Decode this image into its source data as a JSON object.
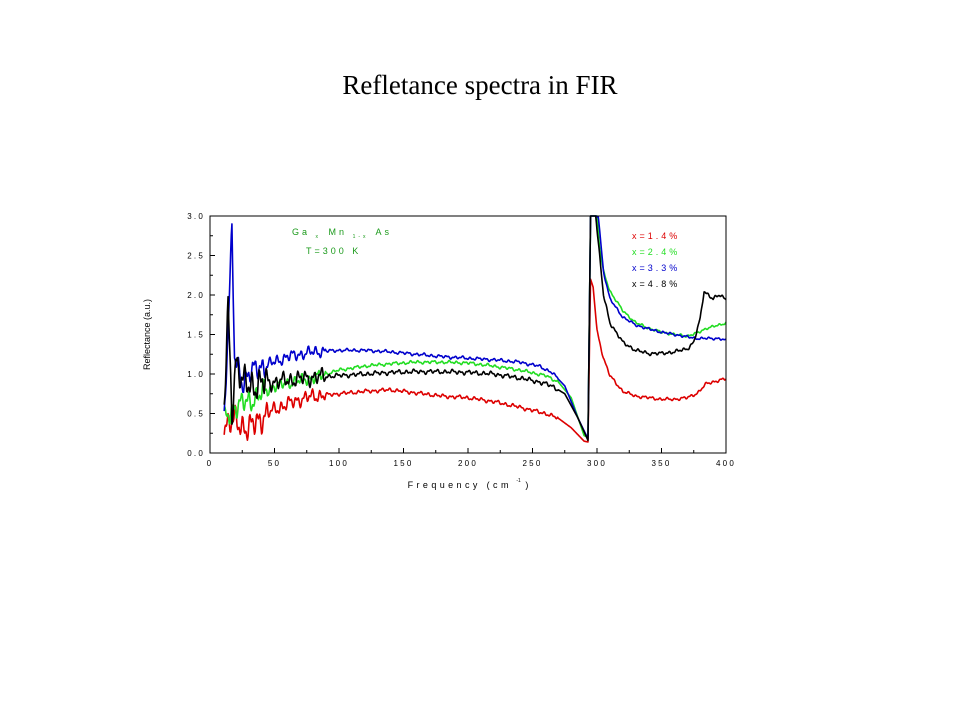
{
  "slide": {
    "title": "Refletance spectra in FIR"
  },
  "chart_data": {
    "type": "line",
    "title": "",
    "xlabel": "Frequency (cm",
    "xlabel_sup": "-1",
    "xlabel_close": ")",
    "ylabel": "Reflectance (a.u.)",
    "xlim": [
      0,
      400
    ],
    "ylim": [
      0.0,
      3.0
    ],
    "xticks": [
      0,
      50,
      100,
      150,
      200,
      250,
      300,
      350,
      400
    ],
    "xtick_labels": [
      "0",
      "50",
      "100",
      "150",
      "200",
      "250",
      "300",
      "350",
      "400"
    ],
    "yticks": [
      0.0,
      0.5,
      1.0,
      1.5,
      2.0,
      2.5,
      3.0
    ],
    "ytick_labels": [
      "0.0",
      "0.5",
      "1.0",
      "1.5",
      "2.0",
      "2.5",
      "3.0"
    ],
    "grid": false,
    "legend_position": "top-right",
    "annotation": {
      "el1": "Ga",
      "sub1": "x",
      "el2": "Mn",
      "sub2": "1-x",
      "el3": "As",
      "temperature": "T=300 K",
      "color": "#1a9a1a"
    },
    "series": [
      {
        "name": "x=1.4%",
        "color": "#dd0000",
        "noise_amp": 0.06,
        "points": [
          [
            11,
            0.35
          ],
          [
            20,
            0.4
          ],
          [
            30,
            0.3
          ],
          [
            40,
            0.45
          ],
          [
            50,
            0.55
          ],
          [
            60,
            0.62
          ],
          [
            70,
            0.68
          ],
          [
            80,
            0.72
          ],
          [
            100,
            0.75
          ],
          [
            120,
            0.78
          ],
          [
            140,
            0.8
          ],
          [
            160,
            0.76
          ],
          [
            180,
            0.72
          ],
          [
            200,
            0.7
          ],
          [
            220,
            0.65
          ],
          [
            240,
            0.58
          ],
          [
            260,
            0.5
          ],
          [
            270,
            0.44
          ],
          [
            280,
            0.32
          ],
          [
            290,
            0.15
          ],
          [
            293,
            0.14
          ],
          [
            295,
            2.2
          ],
          [
            297,
            2.1
          ],
          [
            300,
            1.55
          ],
          [
            305,
            1.2
          ],
          [
            310,
            0.98
          ],
          [
            320,
            0.78
          ],
          [
            330,
            0.72
          ],
          [
            340,
            0.7
          ],
          [
            350,
            0.68
          ],
          [
            360,
            0.68
          ],
          [
            370,
            0.7
          ],
          [
            378,
            0.76
          ],
          [
            385,
            0.88
          ],
          [
            395,
            0.92
          ],
          [
            400,
            0.94
          ]
        ]
      },
      {
        "name": "x=2.4%",
        "color": "#22dd22",
        "noise_amp": 0.05,
        "points": [
          [
            11,
            0.4
          ],
          [
            20,
            0.6
          ],
          [
            30,
            0.65
          ],
          [
            40,
            0.75
          ],
          [
            50,
            0.85
          ],
          [
            60,
            0.88
          ],
          [
            70,
            0.92
          ],
          [
            80,
            0.95
          ],
          [
            100,
            1.05
          ],
          [
            120,
            1.1
          ],
          [
            140,
            1.13
          ],
          [
            160,
            1.15
          ],
          [
            180,
            1.15
          ],
          [
            200,
            1.14
          ],
          [
            220,
            1.1
          ],
          [
            240,
            1.05
          ],
          [
            260,
            0.98
          ],
          [
            270,
            0.9
          ],
          [
            280,
            0.7
          ],
          [
            290,
            0.22
          ],
          [
            293,
            0.2
          ],
          [
            295,
            3.0
          ],
          [
            300,
            3.0
          ],
          [
            302,
            2.6
          ],
          [
            305,
            2.3
          ],
          [
            310,
            2.05
          ],
          [
            320,
            1.8
          ],
          [
            330,
            1.65
          ],
          [
            340,
            1.58
          ],
          [
            350,
            1.53
          ],
          [
            360,
            1.5
          ],
          [
            370,
            1.48
          ],
          [
            378,
            1.52
          ],
          [
            385,
            1.58
          ],
          [
            395,
            1.62
          ],
          [
            400,
            1.65
          ]
        ]
      },
      {
        "name": "x=3.3%",
        "color": "#0000cc",
        "noise_amp": 0.05,
        "points": [
          [
            11,
            0.45
          ],
          [
            17,
            2.8
          ],
          [
            19,
            1.2
          ],
          [
            25,
            0.9
          ],
          [
            30,
            1.0
          ],
          [
            40,
            1.1
          ],
          [
            50,
            1.15
          ],
          [
            60,
            1.22
          ],
          [
            80,
            1.28
          ],
          [
            100,
            1.3
          ],
          [
            120,
            1.3
          ],
          [
            140,
            1.28
          ],
          [
            160,
            1.25
          ],
          [
            180,
            1.22
          ],
          [
            200,
            1.2
          ],
          [
            220,
            1.18
          ],
          [
            240,
            1.15
          ],
          [
            255,
            1.1
          ],
          [
            265,
            1.02
          ],
          [
            275,
            0.85
          ],
          [
            285,
            0.45
          ],
          [
            293,
            0.18
          ],
          [
            295,
            3.0
          ],
          [
            301,
            3.0
          ],
          [
            305,
            2.3
          ],
          [
            310,
            1.95
          ],
          [
            320,
            1.72
          ],
          [
            330,
            1.62
          ],
          [
            340,
            1.57
          ],
          [
            350,
            1.53
          ],
          [
            360,
            1.5
          ],
          [
            370,
            1.47
          ],
          [
            378,
            1.45
          ],
          [
            385,
            1.45
          ],
          [
            395,
            1.45
          ],
          [
            400,
            1.42
          ]
        ]
      },
      {
        "name": "x=4.8%",
        "color": "#000000",
        "noise_amp": 0.07,
        "points": [
          [
            11,
            0.6
          ],
          [
            14,
            1.8
          ],
          [
            17,
            0.5
          ],
          [
            20,
            1.2
          ],
          [
            25,
            0.9
          ],
          [
            30,
            0.85
          ],
          [
            40,
            0.88
          ],
          [
            50,
            0.9
          ],
          [
            60,
            0.92
          ],
          [
            80,
            0.96
          ],
          [
            100,
            0.98
          ],
          [
            120,
            1.0
          ],
          [
            140,
            1.02
          ],
          [
            160,
            1.03
          ],
          [
            180,
            1.03
          ],
          [
            200,
            1.02
          ],
          [
            220,
            1.0
          ],
          [
            240,
            0.95
          ],
          [
            255,
            0.9
          ],
          [
            265,
            0.85
          ],
          [
            275,
            0.75
          ],
          [
            285,
            0.45
          ],
          [
            293,
            0.16
          ],
          [
            295,
            3.0
          ],
          [
            299,
            3.0
          ],
          [
            302,
            2.5
          ],
          [
            305,
            2.0
          ],
          [
            310,
            1.65
          ],
          [
            320,
            1.4
          ],
          [
            330,
            1.3
          ],
          [
            340,
            1.26
          ],
          [
            350,
            1.26
          ],
          [
            360,
            1.28
          ],
          [
            370,
            1.32
          ],
          [
            375,
            1.4
          ],
          [
            380,
            1.7
          ],
          [
            383,
            2.05
          ],
          [
            390,
            1.95
          ],
          [
            395,
            2.0
          ],
          [
            400,
            1.95
          ]
        ]
      }
    ]
  }
}
